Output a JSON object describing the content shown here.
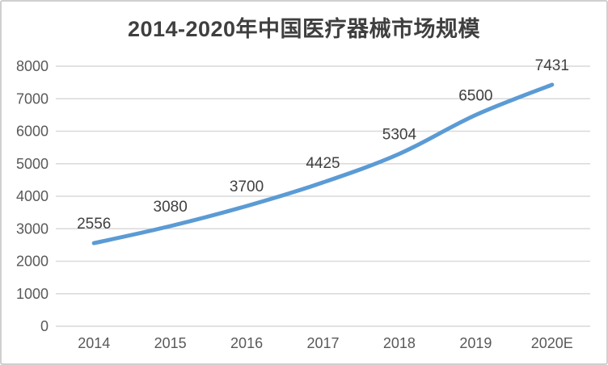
{
  "chart_data": {
    "type": "line",
    "title": "2014-2020年中国医疗器械市场规模",
    "categories": [
      "2014",
      "2015",
      "2016",
      "2017",
      "2018",
      "2019",
      "2020E"
    ],
    "values": [
      2556,
      3080,
      3700,
      4425,
      5304,
      6500,
      7431
    ],
    "data_labels_shown": true,
    "xlabel": "",
    "ylabel": "",
    "ylim": [
      0,
      8000
    ],
    "ytick_interval": 1000,
    "yticks": [
      0,
      1000,
      2000,
      3000,
      4000,
      5000,
      6000,
      7000,
      8000
    ],
    "grid": true,
    "smooth_line": true,
    "legend": "none",
    "colors": {
      "line": "#5B9BD5",
      "gridline": "#D9D9D9",
      "axis_label": "#595959",
      "data_label": "#404040",
      "title": "#3F3F3F",
      "frame_border": "#CFCFCF"
    }
  }
}
